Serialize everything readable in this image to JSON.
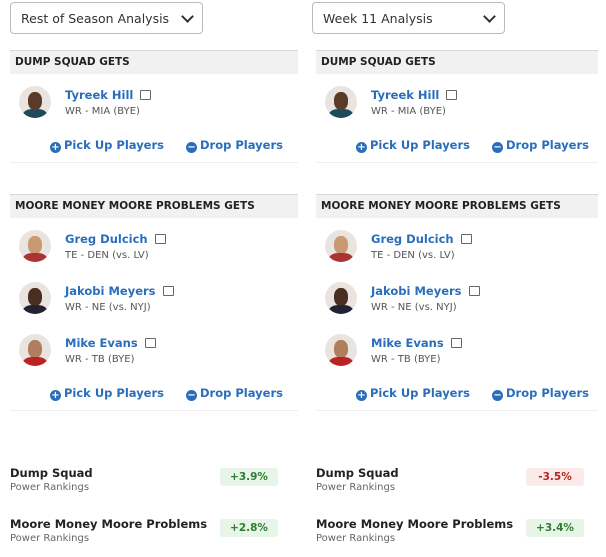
{
  "columns": [
    {
      "dropdown": "Rest of Season Analysis",
      "teams": [
        {
          "heading": "DUMP SQUAD GETS",
          "players": [
            {
              "name": "Tyreek Hill",
              "detail": "WR - MIA (BYE)"
            }
          ],
          "actions": [
            "Pick Up Players",
            "Drop Players"
          ]
        },
        {
          "heading": "MOORE MONEY MOORE PROBLEMS GETS",
          "players": [
            {
              "name": "Greg Dulcich",
              "detail": "TE - DEN (vs. LV)"
            },
            {
              "name": "Jakobi Meyers",
              "detail": "WR - NE (vs. NYJ)"
            },
            {
              "name": "Mike Evans",
              "detail": "WR - TB (BYE)"
            }
          ],
          "actions": [
            "Pick Up Players",
            "Drop Players"
          ]
        }
      ],
      "rankings": [
        {
          "team": "Dump Squad",
          "label": "Power Rankings",
          "change": "+3.9%"
        },
        {
          "team": "Moore Money Moore Problems",
          "label": "Power Rankings",
          "change": "+2.8%"
        }
      ]
    },
    {
      "dropdown": "Week 11 Analysis",
      "teams": [
        {
          "heading": "DUMP SQUAD GETS",
          "players": [
            {
              "name": "Tyreek Hill",
              "detail": "WR - MIA (BYE)"
            }
          ],
          "actions": [
            "Pick Up Players",
            "Drop Players"
          ]
        },
        {
          "heading": "MOORE MONEY MOORE PROBLEMS GETS",
          "players": [
            {
              "name": "Greg Dulcich",
              "detail": "TE - DEN (vs. LV)"
            },
            {
              "name": "Jakobi Meyers",
              "detail": "WR - NE (vs. NYJ)"
            },
            {
              "name": "Mike Evans",
              "detail": "WR - TB (BYE)"
            }
          ],
          "actions": [
            "Pick Up Players",
            "Drop Players"
          ]
        }
      ],
      "rankings": [
        {
          "team": "Dump Squad",
          "label": "Power Rankings",
          "change": "-3.5%"
        },
        {
          "team": "Moore Money Moore Problems",
          "label": "Power Rankings",
          "change": "+3.4%"
        }
      ]
    }
  ]
}
